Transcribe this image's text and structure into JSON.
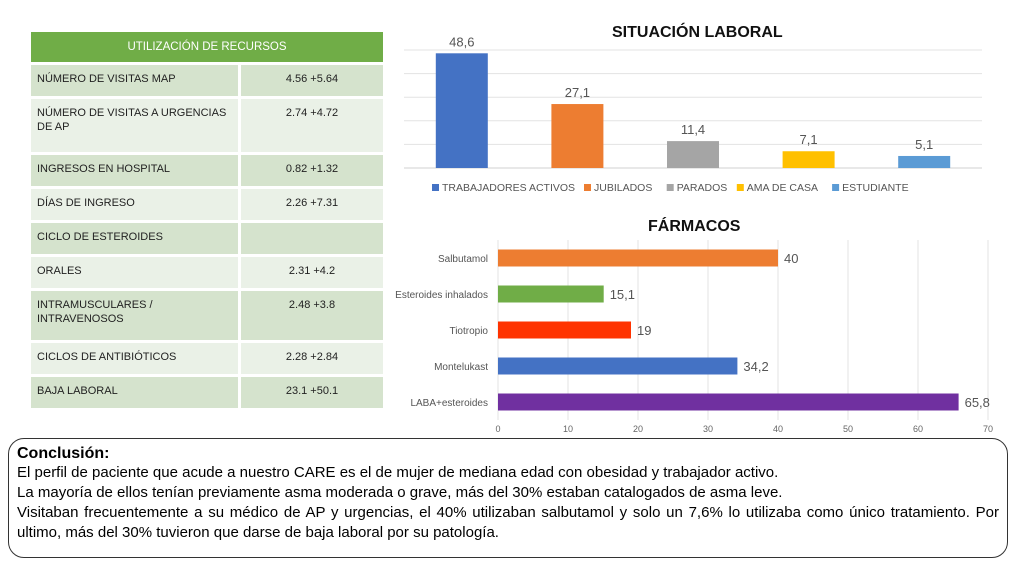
{
  "table": {
    "header": "UTILIZACIÓN DE RECURSOS",
    "rows": [
      {
        "label": "NÚMERO DE VISITAS MAP",
        "value": "4.56 +5.64"
      },
      {
        "label": "NÚMERO DE VISITAS A URGENCIAS DE AP",
        "value": "2.74 +4.72"
      },
      {
        "label": "INGRESOS EN HOSPITAL",
        "value": "0.82 +1.32"
      },
      {
        "label": "DÍAS DE INGRESO",
        "value": "2.26 +7.31"
      },
      {
        "label": "CICLO DE ESTEROIDES",
        "value": ""
      },
      {
        "label": "ORALES",
        "value": "2.31 +4.2"
      },
      {
        "label": "INTRAMUSCULARES / INTRAVENOSOS",
        "value": "2.48 +3.8"
      },
      {
        "label": "CICLOS DE ANTIBIÓTICOS",
        "value": "2.28 +2.84"
      },
      {
        "label": "BAJA LABORAL",
        "value": "23.1 +50.1"
      }
    ]
  },
  "chart_data": [
    {
      "type": "bar",
      "title": "SITUACIÓN LABORAL",
      "categories": [
        "TRABAJADORES ACTIVOS",
        "JUBILADOS",
        "PARADOS",
        "AMA DE CASA",
        "ESTUDIANTE"
      ],
      "values": [
        48.6,
        27.1,
        11.4,
        7.1,
        5.1
      ],
      "data_labels": [
        "48,6",
        "27,1",
        "11,4",
        "7,1",
        "5,1"
      ],
      "colors": [
        "#4472c4",
        "#ed7d31",
        "#a5a5a5",
        "#ffc000",
        "#5b9bd5"
      ],
      "legend": "bottom",
      "ylim": [
        0,
        50
      ],
      "grid": true
    },
    {
      "type": "bar",
      "orientation": "horizontal",
      "title": "FÁRMACOS",
      "categories": [
        "Salbutamol",
        "Esteroides inhalados",
        "Tiotropio",
        "Montelukast",
        "LABA+esteroides"
      ],
      "values": [
        40,
        15.1,
        19,
        34.2,
        65.8
      ],
      "data_labels": [
        "40",
        "15,1",
        "19",
        "34,2",
        "65,8"
      ],
      "colors": [
        "#ed7d31",
        "#70ad47",
        "#ff3300",
        "#4472c4",
        "#7030a0"
      ],
      "xticks": [
        "0",
        "10",
        "20",
        "30",
        "40",
        "50",
        "60",
        "70"
      ],
      "xlim": [
        0,
        70
      ],
      "grid": true
    }
  ],
  "conclusion": {
    "heading": "Conclusión:",
    "line1": "El perfil de paciente que acude a nuestro CARE es el de mujer de mediana edad con obesidad y trabajador activo.",
    "line2": "La mayoría de ellos tenían previamente asma moderada o grave, más del 30% estaban catalogados de asma leve.",
    "line3": "Visitaban frecuentemente a su médico de AP y urgencias, el 40% utilizaban salbutamol y solo un 7,6% lo utilizaba como único tratamiento. Por ultimo, más del 30% tuvieron que darse de baja laboral por su patología."
  }
}
